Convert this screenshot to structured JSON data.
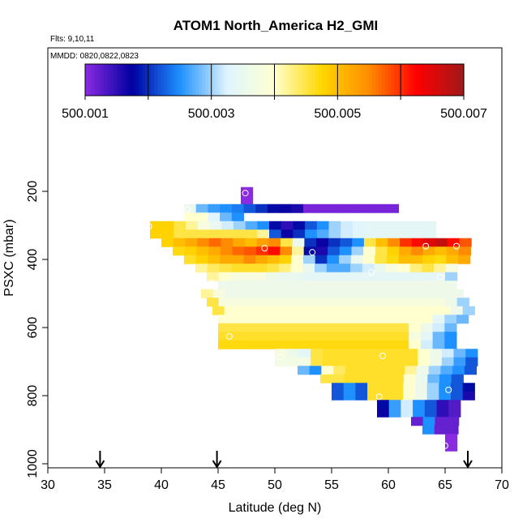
{
  "chart_data": {
    "type": "heatmap",
    "title": "ATOM1 North_America H2_GMI",
    "flights_label": "Flts: 9,10,11",
    "dates_label": "MMDD: 0820,0822,0823",
    "xlabel": "Latitude (deg N)",
    "ylabel": "PSXC (mbar)",
    "xlim": [
      30,
      70
    ],
    "ylim": [
      1000,
      100
    ],
    "x_ticks": [
      30,
      35,
      40,
      45,
      50,
      55,
      60,
      65,
      70
    ],
    "y_ticks": [
      200,
      400,
      600,
      800,
      1000
    ],
    "colorbar": {
      "min": 500.001,
      "max": 500.007,
      "tick_labels": [
        "500.001",
        "500.003",
        "500.005",
        "500.007"
      ],
      "tick_values": [
        500.001,
        500.003,
        500.005,
        500.007
      ],
      "colors": [
        "#8a2be2",
        "#0000a0",
        "#1e90ff",
        "#dff4ff",
        "#ffffd0",
        "#ffd700",
        "#ff8c00",
        "#ff0000",
        "#9e1a1a"
      ]
    },
    "arrows_latitude": [
      34.6,
      44.9,
      67.0
    ],
    "cell_size": {
      "dlat": 1.05,
      "dpres": 25
    },
    "grid_rows": [
      {
        "p": 200,
        "lat0": 47.0,
        "values": [
          500.001
        ]
      },
      {
        "p": 225,
        "lat0": 47.0,
        "values": [
          500.001
        ]
      },
      {
        "p": 250,
        "lat0": 42.0,
        "values": [
          500.0035,
          500.0028,
          500.0026,
          500.0025,
          500.0024,
          500.0022,
          500.002,
          500.0018,
          500.0017,
          500.0016,
          500.0011,
          500.0011,
          500.0011,
          500.0011,
          500.0011,
          500.0011,
          500.0011,
          500.0011
        ]
      },
      {
        "p": 275,
        "lat0": 42.0,
        "values": [
          500.004,
          500.004,
          500.0033,
          500.0028,
          500.0025
        ]
      },
      {
        "p": 300,
        "lat0": 39.0,
        "values": [
          500.0048,
          500.0048,
          500.0045,
          500.0042,
          500.0038,
          500.0035,
          500.0032,
          500.003,
          500.0027,
          500.0025,
          500.0018,
          500.0015,
          500.0018,
          500.0022,
          500.0025,
          500.003,
          500.0032,
          500.0033,
          500.0034,
          500.0034,
          500.0034,
          500.0034,
          500.0034,
          500.0034
        ]
      },
      {
        "p": 325,
        "lat0": 39.0,
        "values": [
          500.0048,
          500.0048,
          500.0045,
          500.0045,
          500.0045,
          500.0045,
          500.0045,
          500.0045,
          500.0045,
          500.0042,
          500.0022,
          500.0017,
          500.002,
          500.0025,
          500.0027,
          500.003,
          500.0032,
          500.0033,
          500.0034,
          500.0034,
          500.0034,
          500.0034,
          500.0034,
          500.0034
        ]
      },
      {
        "p": 350,
        "lat0": 40.0,
        "values": [
          500.0048,
          500.005,
          500.0052,
          500.0055,
          500.0057,
          500.0055,
          500.0052,
          500.005,
          500.0053,
          500.0055,
          500.0045,
          500.0035,
          500.002,
          500.0017,
          500.002,
          500.0022,
          500.0025,
          500.0045,
          500.005,
          500.0055,
          500.006,
          500.0062,
          500.0065,
          500.0067,
          500.0062,
          500.0058
        ]
      },
      {
        "p": 375,
        "lat0": 41.0,
        "values": [
          500.0047,
          500.0048,
          500.005,
          500.0052,
          500.0055,
          500.0057,
          500.0058,
          500.006,
          500.0062,
          500.0055,
          500.0042,
          500.0018,
          500.0016,
          500.0022,
          500.0025,
          500.003,
          500.004,
          500.0045,
          500.0048,
          500.0052,
          500.0055,
          500.0052,
          500.005,
          500.0052,
          500.0055
        ]
      },
      {
        "p": 400,
        "lat0": 42.0,
        "values": [
          500.0046,
          500.0048,
          500.005,
          500.0052,
          500.0052,
          500.0055,
          500.0052,
          500.005,
          500.0048,
          500.004,
          500.003,
          500.002,
          500.0025,
          500.003,
          500.0035,
          500.004,
          500.0045,
          500.0047,
          500.005,
          500.005,
          500.0048,
          500.0047,
          500.005,
          500.0052
        ]
      },
      {
        "p": 425,
        "lat0": 43.0,
        "values": [
          500.0042,
          500.0044,
          500.0045,
          500.0046,
          500.0046,
          500.0046,
          500.0045,
          500.0043,
          500.004,
          500.0035,
          500.003,
          500.0027,
          500.0027,
          500.003,
          500.0032,
          500.0035,
          500.0038,
          500.004,
          500.0043,
          500.0045,
          500.0042,
          500.0038
        ]
      },
      {
        "p": 450,
        "lat0": 44.0,
        "values": [
          500.0042,
          500.004,
          500.0038,
          500.0038,
          500.0038,
          500.0036,
          500.0035,
          500.0035,
          500.0034,
          500.0034,
          500.0034,
          500.0034,
          500.0034,
          500.0034,
          500.0034,
          500.0034,
          500.0034,
          500.0034,
          500.0034,
          500.0034,
          500.003
        ]
      },
      {
        "p": 475,
        "lat0": 45.0,
        "values": [
          500.0036,
          500.0036,
          500.0036,
          500.0036,
          500.0036,
          500.0036,
          500.0036,
          500.0036,
          500.0036,
          500.0036,
          500.0036,
          500.0036,
          500.0036,
          500.0036,
          500.0036,
          500.0036,
          500.0036,
          500.0036,
          500.0036,
          500.0036
        ]
      },
      {
        "p": 500,
        "lat0": 43.5,
        "values": [
          500.0042,
          500.0038,
          500.0036,
          500.0036,
          500.0036,
          500.0036,
          500.0036,
          500.0036,
          500.0036,
          500.0036,
          500.0036,
          500.0036,
          500.0036,
          500.0036,
          500.0036,
          500.0036,
          500.0036,
          500.0036,
          500.0036,
          500.0036,
          500.0036,
          500.0036
        ]
      },
      {
        "p": 525,
        "lat0": 44.0,
        "values": [
          500.0045,
          500.0038,
          500.0038,
          500.0038,
          500.0038,
          500.0038,
          500.0038,
          500.0038,
          500.0038,
          500.0038,
          500.0038,
          500.0038,
          500.0038,
          500.0038,
          500.0038,
          500.0038,
          500.0038,
          500.0038,
          500.0038,
          500.0038,
          500.0036,
          500.003
        ]
      },
      {
        "p": 550,
        "lat0": 44.5,
        "values": [
          500.0045,
          500.004,
          500.004,
          500.004,
          500.004,
          500.004,
          500.004,
          500.004,
          500.004,
          500.004,
          500.004,
          500.004,
          500.004,
          500.004,
          500.004,
          500.004,
          500.004,
          500.004,
          500.004,
          500.004,
          500.0036,
          500.003
        ]
      },
      {
        "p": 575,
        "lat0": 45.0,
        "values": [
          500.004,
          500.004,
          500.004,
          500.004,
          500.004,
          500.004,
          500.004,
          500.004,
          500.004,
          500.004,
          500.004,
          500.004,
          500.004,
          500.004,
          500.004,
          500.004,
          500.004,
          500.004,
          500.0034,
          500.003,
          500.0028
        ]
      },
      {
        "p": 600,
        "lat0": 45.0,
        "values": [
          500.0045,
          500.0045,
          500.0045,
          500.0045,
          500.0045,
          500.0045,
          500.0045,
          500.0045,
          500.0045,
          500.0045,
          500.0045,
          500.0045,
          500.0045,
          500.0045,
          500.0045,
          500.0045,
          500.004,
          500.0036,
          500.0032,
          500.0028
        ]
      },
      {
        "p": 625,
        "lat0": 45.0,
        "values": [
          500.0046,
          500.0046,
          500.0046,
          500.0046,
          500.0046,
          500.0046,
          500.0046,
          500.0046,
          500.0046,
          500.0046,
          500.0046,
          500.0046,
          500.0046,
          500.0046,
          500.0046,
          500.0046,
          500.0038,
          500.0034,
          500.0028,
          500.0025
        ]
      },
      {
        "p": 650,
        "lat0": 45.0,
        "values": [
          500.0047,
          500.0047,
          500.0047,
          500.0047,
          500.0047,
          500.0047,
          500.0047,
          500.0047,
          500.0047,
          500.0047,
          500.0047,
          500.0047,
          500.0047,
          500.0047,
          500.0047,
          500.0047,
          500.004,
          500.0032,
          500.0028,
          500.0025
        ]
      },
      {
        "p": 675,
        "lat0": 50.0,
        "values": [
          500.0038,
          500.0036,
          500.0034,
          500.0045,
          500.0046,
          500.0046,
          500.0046,
          500.0046,
          500.0046,
          500.0046,
          500.0046,
          500.0046,
          500.004,
          500.0036,
          500.0032,
          500.0028,
          500.0025
        ]
      },
      {
        "p": 700,
        "lat0": 50.0,
        "values": [
          500.0037,
          500.0037,
          500.0037,
          500.0045,
          500.0046,
          500.0046,
          500.0046,
          500.0046,
          500.0046,
          500.0046,
          500.0046,
          500.0046,
          500.004,
          500.0036,
          500.003,
          500.0026,
          500.0022
        ]
      },
      {
        "p": 725,
        "lat0": 52.0,
        "values": [
          500.0028,
          500.0025,
          500.004,
          500.0044,
          500.0046,
          500.0046,
          500.0046,
          500.0046,
          500.0046,
          500.0042,
          500.0036,
          500.003,
          500.0027,
          500.0025,
          500.0022
        ]
      },
      {
        "p": 750,
        "lat0": 54.0,
        "values": [
          500.0045,
          500.0045,
          500.0046,
          500.0046,
          500.0046,
          500.0046,
          500.0046,
          500.004,
          500.0035,
          500.0028,
          500.0025,
          500.0022
        ]
      },
      {
        "p": 775,
        "lat0": 55.0,
        "values": [
          500.0022,
          500.0025,
          500.0022,
          500.0046,
          500.0046,
          500.0046,
          500.004,
          500.0036,
          500.003,
          500.0025,
          500.0022,
          500.0018
        ]
      },
      {
        "p": 800,
        "lat0": 55.0,
        "values": [
          500.0022,
          500.0025,
          500.0022,
          500.0046,
          500.0046,
          500.0046,
          500.004,
          500.0036,
          500.003,
          500.0025,
          500.0022,
          500.0016
        ]
      },
      {
        "p": 825,
        "lat0": 59.0,
        "values": [
          500.0018,
          500.0026,
          500.0032,
          500.0025,
          500.0022,
          500.0015,
          500.0013
        ]
      },
      {
        "p": 850,
        "lat0": 59.0,
        "values": [
          500.0017,
          500.0026,
          500.0032,
          500.0025,
          500.0022,
          500.0015,
          500.0013
        ]
      },
      {
        "p": 875,
        "lat0": 62.0,
        "values": [
          500.0012,
          500.0025,
          500.0012,
          500.0012
        ]
      },
      {
        "p": 900,
        "lat0": 63.0,
        "values": [
          500.0025,
          500.0012,
          500.0012
        ]
      },
      {
        "p": 925,
        "lat0": 65.0,
        "values": [
          500.001
        ]
      },
      {
        "p": 950,
        "lat0": 65.0,
        "values": [
          500.001
        ]
      }
    ],
    "markers": [
      {
        "lat": 47.4,
        "p": 205
      },
      {
        "lat": 51.7,
        "p": 213
      },
      {
        "lat": 57.2,
        "p": 227
      },
      {
        "lat": 42.3,
        "p": 253
      },
      {
        "lat": 38.9,
        "p": 303
      },
      {
        "lat": 49.1,
        "p": 367
      },
      {
        "lat": 53.3,
        "p": 379
      },
      {
        "lat": 63.3,
        "p": 361
      },
      {
        "lat": 66.0,
        "p": 361
      },
      {
        "lat": 58.5,
        "p": 438
      },
      {
        "lat": 64.6,
        "p": 452
      },
      {
        "lat": 44.4,
        "p": 468
      },
      {
        "lat": 46.0,
        "p": 626
      },
      {
        "lat": 50.5,
        "p": 686
      },
      {
        "lat": 59.5,
        "p": 683
      },
      {
        "lat": 59.2,
        "p": 803
      },
      {
        "lat": 65.3,
        "p": 783
      },
      {
        "lat": 65.0,
        "p": 947
      }
    ]
  }
}
